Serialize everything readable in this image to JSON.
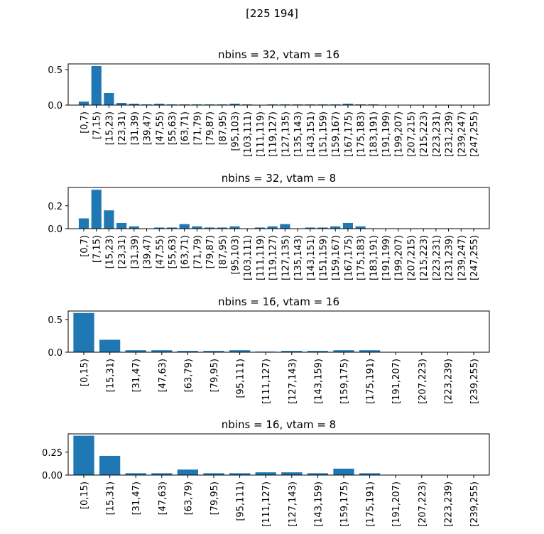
{
  "figure": {
    "suptitle": "[225 194]"
  },
  "colors": {
    "bar": "#1f77b4",
    "axes": "#000000"
  },
  "chart_data": [
    {
      "type": "bar",
      "title": "nbins = 32, vtam = 16",
      "categories": [
        "[0,7)",
        "[7,15)",
        "[15,23)",
        "[23,31)",
        "[31,39)",
        "[39,47)",
        "[47,55)",
        "[55,63)",
        "[63,71)",
        "[71,79)",
        "[79,87)",
        "[87,95)",
        "[95,103)",
        "[103,111)",
        "[111,119)",
        "[119,127)",
        "[127,135)",
        "[135,143)",
        "[143,151)",
        "[151,159)",
        "[159,167)",
        "[167,175)",
        "[175,183)",
        "[183,191)",
        "[191,199)",
        "[199,207)",
        "[207,215)",
        "[215,223)",
        "[223,231)",
        "[231,239)",
        "[239,247)",
        "[247,255)"
      ],
      "values": [
        0.05,
        0.55,
        0.17,
        0.03,
        0.02,
        0.01,
        0.02,
        0.01,
        0.01,
        0.01,
        0.01,
        0.01,
        0.02,
        0.01,
        0.0,
        0.01,
        0.01,
        0.01,
        0.01,
        0.01,
        0.01,
        0.02,
        0.01,
        0.01,
        0.0,
        0.0,
        0.0,
        0.0,
        0.0,
        0.0,
        0.0,
        0.0
      ],
      "yticks": [
        0.0,
        0.5
      ],
      "ytick_labels": [
        "0.0",
        "0.5"
      ],
      "ylim": [
        0,
        0.58
      ],
      "grid": false
    },
    {
      "type": "bar",
      "title": "nbins = 32, vtam = 8",
      "categories": [
        "[0,7)",
        "[7,15)",
        "[15,23)",
        "[23,31)",
        "[31,39)",
        "[39,47)",
        "[47,55)",
        "[55,63)",
        "[63,71)",
        "[71,79)",
        "[79,87)",
        "[87,95)",
        "[95,103)",
        "[103,111)",
        "[111,119)",
        "[119,127)",
        "[127,135)",
        "[135,143)",
        "[143,151)",
        "[151,159)",
        "[159,167)",
        "[167,175)",
        "[175,183)",
        "[183,191)",
        "[191,199)",
        "[199,207)",
        "[207,215)",
        "[215,223)",
        "[223,231)",
        "[231,239)",
        "[239,247)",
        "[247,255)"
      ],
      "values": [
        0.09,
        0.34,
        0.16,
        0.05,
        0.02,
        0.0,
        0.01,
        0.01,
        0.04,
        0.02,
        0.01,
        0.01,
        0.02,
        0.0,
        0.01,
        0.02,
        0.04,
        0.0,
        0.01,
        0.01,
        0.02,
        0.05,
        0.02,
        0.0,
        0.0,
        0.0,
        0.0,
        0.0,
        0.0,
        0.0,
        0.0,
        0.0
      ],
      "yticks": [
        0.0,
        0.2
      ],
      "ytick_labels": [
        "0.0",
        "0.2"
      ],
      "ylim": [
        0,
        0.36
      ],
      "grid": false
    },
    {
      "type": "bar",
      "title": "nbins = 16, vtam = 16",
      "categories": [
        "[0,15)",
        "[15,31)",
        "[31,47)",
        "[47,63)",
        "[63,79)",
        "[79,95)",
        "[95,111)",
        "[111,127)",
        "[127,143)",
        "[143,159)",
        "[159,175)",
        "[175,191)",
        "[191,207)",
        "[207,223)",
        "[223,239)",
        "[239,255)"
      ],
      "values": [
        0.6,
        0.19,
        0.03,
        0.03,
        0.02,
        0.02,
        0.03,
        0.01,
        0.02,
        0.02,
        0.03,
        0.03,
        0.0,
        0.0,
        0.0,
        0.0
      ],
      "yticks": [
        0.0,
        0.5
      ],
      "ytick_labels": [
        "0.0",
        "0.5"
      ],
      "ylim": [
        0,
        0.63
      ],
      "grid": false
    },
    {
      "type": "bar",
      "title": "nbins = 16, vtam = 8",
      "categories": [
        "[0,15)",
        "[15,31)",
        "[31,47)",
        "[47,63)",
        "[63,79)",
        "[79,95)",
        "[95,111)",
        "[111,127)",
        "[127,143)",
        "[143,159)",
        "[159,175)",
        "[175,191)",
        "[191,207)",
        "[207,223)",
        "[223,239)",
        "[239,255)"
      ],
      "values": [
        0.43,
        0.21,
        0.02,
        0.02,
        0.06,
        0.02,
        0.02,
        0.03,
        0.03,
        0.02,
        0.07,
        0.02,
        0.0,
        0.0,
        0.0,
        0.0
      ],
      "yticks": [
        0.0,
        0.25
      ],
      "ytick_labels": [
        "0.00",
        "0.25"
      ],
      "ylim": [
        0,
        0.45
      ],
      "grid": false
    }
  ]
}
